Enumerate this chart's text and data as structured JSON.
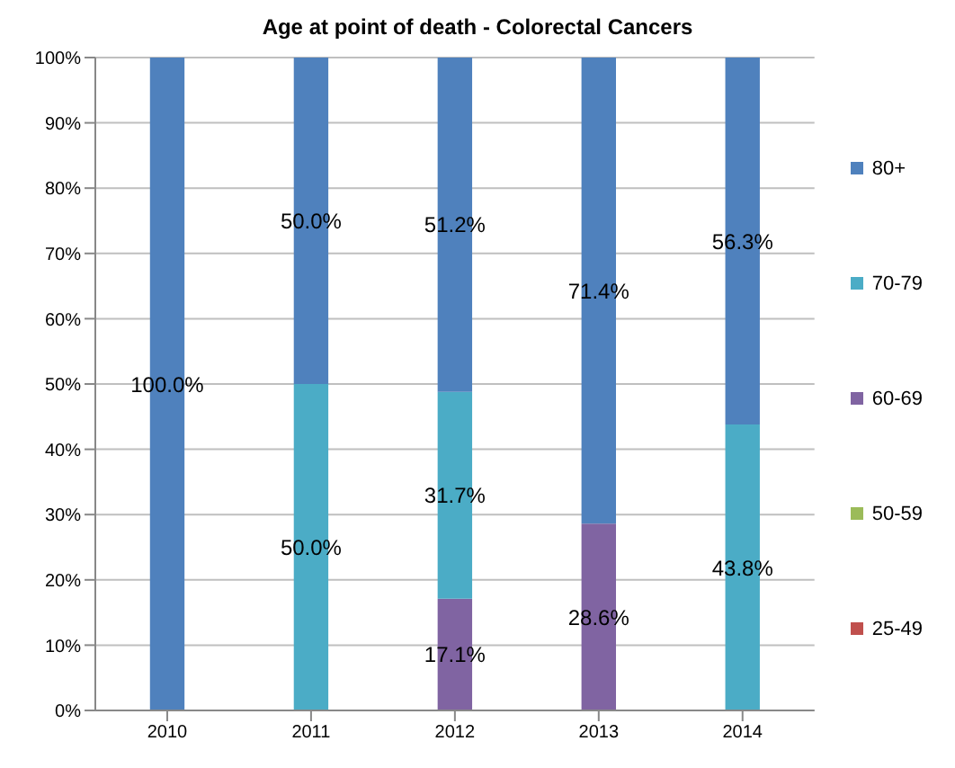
{
  "chart_data": {
    "type": "bar",
    "title": "Age at point of death - Colorectal Cancers",
    "categories": [
      "2010",
      "2011",
      "2012",
      "2013",
      "2014"
    ],
    "stacked": true,
    "series": [
      {
        "name": "25-49",
        "color": "#c0504d",
        "values": [
          0,
          0,
          0,
          0,
          0
        ],
        "value_labels": [
          null,
          null,
          null,
          null,
          null
        ]
      },
      {
        "name": "50-59",
        "color": "#9bbb59",
        "values": [
          0,
          0,
          0,
          0,
          0
        ],
        "value_labels": [
          null,
          null,
          null,
          null,
          null
        ]
      },
      {
        "name": "60-69",
        "color": "#8064a2",
        "values": [
          0,
          0,
          17.1,
          28.6,
          0
        ],
        "value_labels": [
          null,
          null,
          "17.1%",
          "28.6%",
          null
        ]
      },
      {
        "name": "70-79",
        "color": "#4bacc6",
        "values": [
          0,
          50,
          31.7,
          0,
          43.8
        ],
        "value_labels": [
          null,
          "50.0%",
          "31.7%",
          null,
          "43.8%"
        ]
      },
      {
        "name": "80+",
        "color": "#4f81bd",
        "values": [
          100,
          50,
          51.2,
          71.4,
          56.3
        ],
        "value_labels": [
          "100.0%",
          "50.0%",
          "51.2%",
          "71.4%",
          "56.3%"
        ]
      }
    ],
    "ylim": [
      0,
      100
    ],
    "yticks": [
      {
        "value": 0,
        "label": "0%"
      },
      {
        "value": 10,
        "label": "10%"
      },
      {
        "value": 20,
        "label": "20%"
      },
      {
        "value": 30,
        "label": "30%"
      },
      {
        "value": 40,
        "label": "40%"
      },
      {
        "value": 50,
        "label": "50%"
      },
      {
        "value": 60,
        "label": "60%"
      },
      {
        "value": 70,
        "label": "70%"
      },
      {
        "value": 80,
        "label": "80%"
      },
      {
        "value": 90,
        "label": "90%"
      },
      {
        "value": 100,
        "label": "100%"
      }
    ],
    "grid": "y",
    "legend": "right"
  }
}
